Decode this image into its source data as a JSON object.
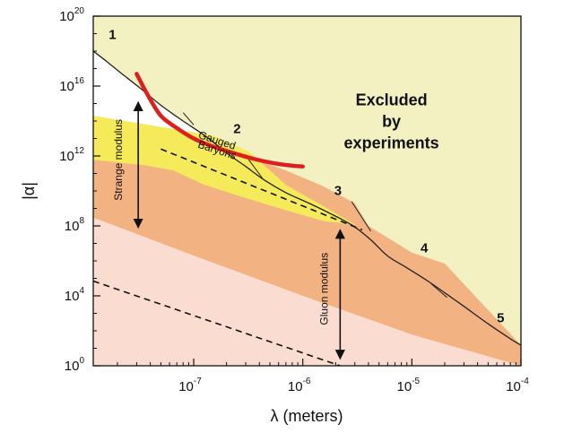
{
  "chart_data": {
    "type": "area",
    "title": "",
    "xlabel": "λ (meters)",
    "ylabel": "|α|",
    "x_scale": "log",
    "y_scale": "log",
    "xlim": [
      1.2e-08,
      0.0001
    ],
    "ylim": [
      1,
      1e+20
    ],
    "grid": false,
    "x_ticks": [
      {
        "value": 1e-07,
        "base": "10",
        "exp": "-7"
      },
      {
        "value": 1e-06,
        "base": "10",
        "exp": "-6"
      },
      {
        "value": 1e-05,
        "base": "10",
        "exp": "-5"
      },
      {
        "value": 0.0001,
        "base": "10",
        "exp": "-4"
      }
    ],
    "y_ticks": [
      {
        "value": 1,
        "base": "10",
        "exp": "0"
      },
      {
        "value": 10000.0,
        "base": "10",
        "exp": "4"
      },
      {
        "value": 100000000.0,
        "base": "10",
        "exp": "8"
      },
      {
        "value": 1000000000000.0,
        "base": "10",
        "exp": "12"
      },
      {
        "value": 1e+16,
        "base": "10",
        "exp": "16"
      },
      {
        "value": 1e+20,
        "base": "10",
        "exp": "20"
      }
    ],
    "exclusion_boundary": {
      "x": [
        1.2e-08,
        1.6e-08,
        2.2e-08,
        3.2e-08,
        5e-08,
        8e-08,
        1.3e-07,
        2e-07,
        3e-07,
        4.5e-07,
        7e-07,
        1.1e-06,
        1.8e-06,
        2.9e-06,
        4.2e-06,
        6e-06,
        9e-06,
        1.4e-05,
        2e-05,
        3e-05,
        5e-05,
        8e-05,
        0.0001
      ],
      "y": [
        1e+18,
        2.5e+17,
        5e+16,
        8000000000000000.0,
        800000000000000.0,
        100000000000000.0,
        13000000000000.0,
        1500000000000.0,
        250000000000.0,
        40000000000.0,
        8000000000.0,
        2200000000.0,
        500000000.0,
        100000000.0,
        16000000.0,
        1900000.0,
        400000.0,
        70000.0,
        15000.0,
        2500,
        250,
        35,
        15
      ]
    },
    "series": [
      {
        "name": "Gauged Baryons",
        "color": "#f5ea5a",
        "x": [
          1.2e-08,
          1.5e-07,
          3.2e-07,
          7e-07,
          1.6e-06,
          3e-06,
          1.6e-06,
          6.5e-07,
          2.4e-07,
          1.2e-07,
          6.5e-08,
          3.5e-08,
          1.2e-08
        ],
        "y": [
          200000000000000.0,
          15000000000000.0,
          1800000000000.0,
          22000000000.0,
          1200000000.0,
          120000000.0,
          180000000.0,
          900000000.0,
          6000000000.0,
          25000000000.0,
          150000000000.0,
          300000000000.0,
          600000000000.0
        ]
      },
      {
        "name": "Strange modulus",
        "color": "#f2b282",
        "x": [
          1.2e-08,
          2e-08,
          5e-08,
          1.3e-07,
          3e-07,
          7e-07,
          1.5e-06,
          3e-06,
          4e-06,
          1e-05,
          2e-05,
          0.0001,
          0.0001,
          1e-05,
          1e-06,
          1e-07,
          1.2e-08
        ],
        "y": [
          150000000000000.0,
          100000000000000.0,
          25000000000000.0,
          5000000000000.0,
          1000000000000.0,
          150000000000.0,
          20000000000.0,
          2000000000.0,
          100000000.0,
          3000000.0,
          700000.0,
          15,
          1,
          60,
          10000.0,
          2000000.0,
          300000000.0
        ]
      },
      {
        "name": "Gluon modulus",
        "color": "#fbdcd0",
        "x": [
          1.2e-08,
          1e-07,
          1e-06,
          1e-05,
          0.0001,
          0.0001,
          1e-05,
          1e-06,
          1e-07,
          1.2e-08
        ],
        "y": [
          300000000.0,
          2000000.0,
          10000.0,
          60,
          1,
          1,
          1,
          1,
          1,
          1
        ]
      },
      {
        "name": "Excluded by experiments",
        "color": "#f3f0c2"
      }
    ],
    "red_curve": {
      "color": "#dd1f1f",
      "x": [
        3e-08,
        3.8e-08,
        5e-08,
        7e-08,
        1e-07,
        1.5e-07,
        2.3e-07,
        3.5e-07,
        5.5e-07,
        8e-07,
        1e-06
      ],
      "y": [
        5e+16,
        3000000000000000.0,
        200000000000000.0,
        40000000000000.0,
        10000000000000.0,
        3500000000000.0,
        1500000000000.0,
        700000000000.0,
        380000000000.0,
        280000000000.0,
        250000000000.0
      ]
    },
    "dashed_lines": [
      {
        "x": [
          5e-08,
          3.5e-06
        ],
        "y": [
          2500000000000.0,
          60000000.0
        ]
      },
      {
        "x": [
          1.2e-08,
          2.2e-06
        ],
        "y": [
          70000.0,
          1
        ]
      }
    ],
    "boundary_ticks": [
      {
        "x": [
          8e-08,
          1e-07
        ],
        "y": [
          300000000000000.0,
          60000000000000.0
        ]
      },
      {
        "x": [
          3.2e-07,
          4.3e-07
        ],
        "y": [
          600000000000.0,
          50000000000.0
        ]
      },
      {
        "x": [
          2.8e-06,
          4.2e-06
        ],
        "y": [
          2500000000.0,
          50000000.0
        ]
      },
      {
        "x": [
          1.5e-05,
          2.1e-05
        ],
        "y": [
          50000.0,
          8000.0
        ]
      }
    ],
    "curve_labels": [
      {
        "text": "1",
        "x": 1.8e-08,
        "y": 5e+18
      },
      {
        "text": "2",
        "x": 2.5e-07,
        "y": 20000000000000.0
      },
      {
        "text": "3",
        "x": 2.1e-06,
        "y": 6000000000.0
      },
      {
        "text": "4",
        "x": 1.3e-05,
        "y": 3000000.0
      },
      {
        "text": "5",
        "x": 6.5e-05,
        "y": 300.0
      }
    ],
    "region_label": {
      "lines": [
        "Excluded",
        "by",
        "experiments"
      ],
      "x": 6.5e-06,
      "y": 800000000000000.0
    },
    "band_labels": [
      {
        "text": "Gauged",
        "x": 1.6e-07,
        "y": 5000000000000.0,
        "rotate": 18
      },
      {
        "text": "Baryons",
        "x": 1.6e-07,
        "y": 1400000000000.0,
        "rotate": 18
      }
    ],
    "annotations": [
      {
        "text": "Strange modulus",
        "arrow_x": 3.1e-08,
        "arrow_y": [
          1200000000000000.0,
          80000000.0
        ],
        "label_x": 2.2e-08,
        "label_y": 600000000000.0
      },
      {
        "text": "Gluon modulus",
        "arrow_x": 2.2e-06,
        "arrow_y": [
          60000000.0,
          2.5
        ],
        "label_x": 1.7e-06,
        "label_y": 25000.0
      }
    ]
  }
}
